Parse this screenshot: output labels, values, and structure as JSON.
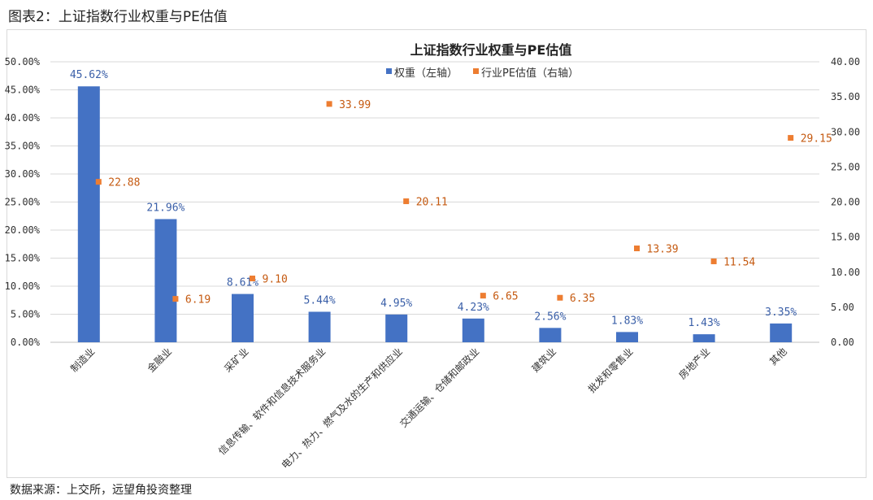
{
  "figure_title": "图表2：上证指数行业权重与PE估值",
  "source_note": "数据来源：上交所，远望角投资整理",
  "chart_data": {
    "type": "bar",
    "title": "上证指数行业权重与PE估值",
    "categories": [
      "制造业",
      "金融业",
      "采矿业",
      "信息传输、软件和信息技术服务业",
      "电力、热力、燃气及水的生产和供应业",
      "交通运输、仓储和邮政业",
      "建筑业",
      "批发和零售业",
      "房地产业",
      "其他"
    ],
    "series": [
      {
        "name": "权重（左轴）",
        "kind": "bar",
        "axis": "left",
        "color": "#4472C4",
        "values": [
          45.62,
          21.96,
          8.61,
          5.44,
          4.95,
          4.23,
          2.56,
          1.83,
          1.43,
          3.35
        ],
        "labels": [
          "45.62%",
          "21.96%",
          "8.61%",
          "5.44%",
          "4.95%",
          "4.23%",
          "2.56%",
          "1.83%",
          "1.43%",
          "3.35%"
        ]
      },
      {
        "name": "行业PE估值（右轴）",
        "kind": "marker",
        "axis": "right",
        "color": "#ED7D31",
        "values": [
          22.88,
          6.19,
          9.1,
          33.99,
          20.11,
          6.65,
          6.35,
          13.39,
          11.54,
          29.15
        ],
        "labels": [
          "22.88",
          "6.19",
          "9.10",
          "33.99",
          "20.11",
          "6.65",
          "6.35",
          "13.39",
          "11.54",
          "29.15"
        ]
      }
    ],
    "y_left": {
      "ylim": [
        0,
        50
      ],
      "ticks": [
        "0.00%",
        "5.00%",
        "10.00%",
        "15.00%",
        "20.00%",
        "25.00%",
        "30.00%",
        "35.00%",
        "40.00%",
        "45.00%",
        "50.00%"
      ]
    },
    "y_right": {
      "ylim": [
        0,
        40
      ],
      "ticks": [
        "0.00",
        "5.00",
        "10.00",
        "15.00",
        "20.00",
        "25.00",
        "30.00",
        "35.00",
        "40.00"
      ]
    },
    "grid": true,
    "legend_position": "top-center",
    "colors": {
      "bar": "#4472C4",
      "marker": "#ED7D31",
      "bar_label": "#3A5FA8",
      "marker_label": "#C55A11",
      "grid": "#d9d9d9",
      "axis_text": "#333333"
    }
  }
}
